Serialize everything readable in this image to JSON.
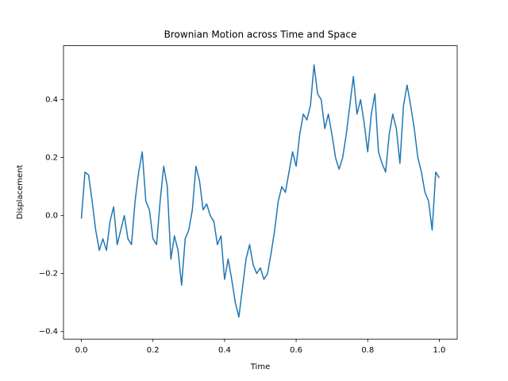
{
  "chart_data": {
    "type": "line",
    "title": "Brownian Motion across Time and Space",
    "xlabel": "Time",
    "ylabel": "Displacement",
    "color": "#1f77b4",
    "x": [
      0,
      0.01,
      0.02,
      0.03,
      0.04,
      0.05,
      0.06,
      0.07,
      0.08,
      0.09,
      0.1,
      0.11,
      0.12,
      0.13,
      0.14,
      0.15,
      0.16,
      0.17,
      0.18,
      0.19,
      0.2,
      0.21,
      0.22,
      0.23,
      0.24,
      0.25,
      0.26,
      0.27,
      0.28,
      0.29,
      0.3,
      0.31,
      0.32,
      0.33,
      0.34,
      0.35,
      0.36,
      0.37,
      0.38,
      0.39,
      0.4,
      0.41,
      0.42,
      0.43,
      0.44,
      0.45,
      0.46,
      0.47,
      0.48,
      0.49,
      0.5,
      0.51,
      0.52,
      0.53,
      0.54,
      0.55,
      0.56,
      0.57,
      0.58,
      0.59,
      0.6,
      0.61,
      0.62,
      0.63,
      0.64,
      0.65,
      0.66,
      0.67,
      0.68,
      0.69,
      0.7,
      0.71,
      0.72,
      0.73,
      0.74,
      0.75,
      0.76,
      0.77,
      0.78,
      0.79,
      0.8,
      0.81,
      0.82,
      0.83,
      0.84,
      0.85,
      0.86,
      0.87,
      0.88,
      0.89,
      0.9,
      0.91,
      0.92,
      0.93,
      0.94,
      0.95,
      0.96,
      0.97,
      0.98,
      0.99,
      1
    ],
    "values": [
      -0.01,
      0.15,
      0.14,
      0.05,
      -0.05,
      -0.12,
      -0.08,
      -0.12,
      -0.02,
      0.03,
      -0.1,
      -0.05,
      0,
      -0.08,
      -0.1,
      0.05,
      0.15,
      0.22,
      0.05,
      0.02,
      -0.08,
      -0.1,
      0.05,
      0.17,
      0.1,
      -0.15,
      -0.07,
      -0.12,
      -0.24,
      -0.08,
      -0.05,
      0.02,
      0.17,
      0.12,
      0.02,
      0.04,
      0,
      -0.02,
      -0.1,
      -0.07,
      -0.22,
      -0.15,
      -0.22,
      -0.3,
      -0.35,
      -0.25,
      -0.15,
      -0.1,
      -0.17,
      -0.2,
      -0.18,
      -0.22,
      -0.2,
      -0.13,
      -0.05,
      0.05,
      0.1,
      0.08,
      0.15,
      0.22,
      0.17,
      0.28,
      0.35,
      0.33,
      0.38,
      0.52,
      0.42,
      0.4,
      0.3,
      0.35,
      0.28,
      0.2,
      0.16,
      0.2,
      0.28,
      0.38,
      0.48,
      0.35,
      0.4,
      0.32,
      0.22,
      0.35,
      0.42,
      0.22,
      0.18,
      0.15,
      0.28,
      0.35,
      0.3,
      0.18,
      0.38,
      0.45,
      0.38,
      0.3,
      0.2,
      0.15,
      0.08,
      0.05,
      -0.05,
      0.15,
      0.13
    ],
    "xlim": [
      -0.05,
      1.05
    ],
    "ylim": [
      -0.426,
      0.586
    ],
    "xticks": [
      {
        "value": 0,
        "label": "0.0"
      },
      0.2,
      0.4,
      0.6,
      0.8,
      {
        "value": 1,
        "label": "1.0"
      }
    ],
    "yticks": [
      {
        "value": -0.4,
        "label": "−0.4"
      },
      {
        "value": -0.2,
        "label": "−0.2"
      },
      {
        "value": 0,
        "label": "0.0"
      },
      0.2,
      0.4
    ]
  }
}
